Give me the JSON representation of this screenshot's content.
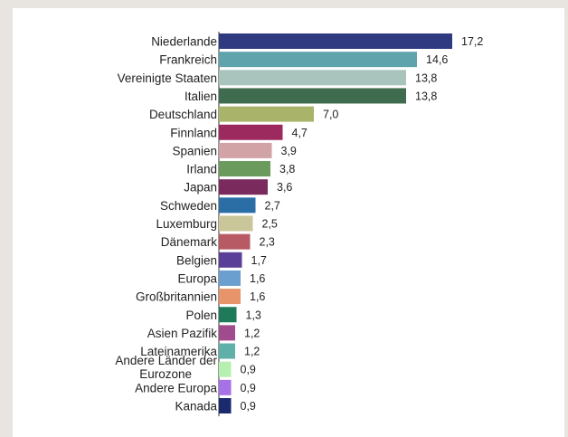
{
  "chart_data": {
    "type": "bar",
    "orientation": "horizontal",
    "title": "",
    "xlabel": "",
    "ylabel": "",
    "xlim": [
      0,
      17.2
    ],
    "grid": false,
    "legend": "none",
    "categories": [
      "Niederlande",
      "Frankreich",
      "Vereinigte Staaten",
      "Italien",
      "Deutschland",
      "Finnland",
      "Spanien",
      "Irland",
      "Japan",
      "Schweden",
      "Luxemburg",
      "Dänemark",
      "Belgien",
      "Europa",
      "Großbritannien",
      "Polen",
      "Asien Pazifik",
      "Lateinamerika",
      "Andere Länder der Eurozone",
      "Andere Europa",
      "Kanada"
    ],
    "values": [
      17.2,
      14.6,
      13.8,
      13.8,
      7.0,
      4.7,
      3.9,
      3.8,
      3.6,
      2.7,
      2.5,
      2.3,
      1.7,
      1.6,
      1.6,
      1.3,
      1.2,
      1.2,
      0.9,
      0.9,
      0.9
    ],
    "value_labels": [
      "17,2",
      "14,6",
      "13,8",
      "13,8",
      "7,0",
      "4,7",
      "3,9",
      "3,8",
      "3,6",
      "2,7",
      "2,5",
      "2,3",
      "1,7",
      "1,6",
      "1,6",
      "1,3",
      "1,2",
      "1,2",
      "0,9",
      "0,9",
      "0,9"
    ],
    "colors": [
      "#2f3a80",
      "#5fa4ad",
      "#a9c4bd",
      "#3f6b4f",
      "#a9b36a",
      "#9c2a5e",
      "#d1a3a6",
      "#6a9a5c",
      "#7a2a5c",
      "#2a6ea5",
      "#c9c69a",
      "#b85a64",
      "#5a3f98",
      "#6a9fd0",
      "#e8946a",
      "#1f7a5a",
      "#a04c8c",
      "#5fb0a8",
      "#b6f0b0",
      "#a772e8",
      "#1a2a6c"
    ]
  }
}
